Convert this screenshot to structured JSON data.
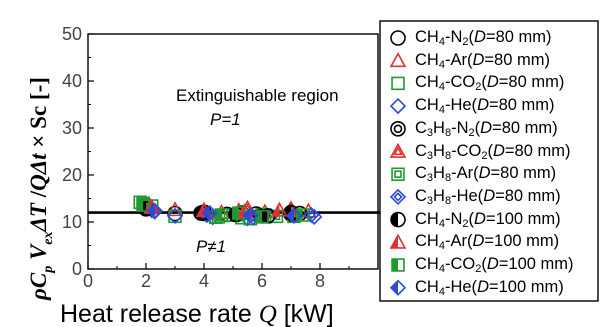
{
  "chart_data": {
    "type": "scatter",
    "xlabel": "Heat release rate Q [kW]",
    "ylabel": "ρC_p V_ex ΔT / QΔt × Sc [-]",
    "xlim": [
      0,
      10
    ],
    "ylim": [
      0,
      50
    ],
    "xticks": [
      "0",
      "2",
      "4",
      "6",
      "8"
    ],
    "yticks": [
      "0",
      "10",
      "20",
      "30",
      "40",
      "50"
    ],
    "reference_line": {
      "y": 12,
      "color": "#000000"
    },
    "annotations": {
      "region": "Extinguishable region",
      "p_equals": "P=1",
      "p_not_equals": "P≠1"
    },
    "series": [
      {
        "name": "CH4-N2(D=80 mm)",
        "legend_html": "CH<sub>4</sub>-N<sub>2</sub>(<i>D</i>=80 mm)",
        "marker": "circle",
        "color": "#000000",
        "points": [
          [
            2.0,
            13.2
          ],
          [
            3.0,
            11.8
          ],
          [
            4.0,
            12.1
          ],
          [
            4.8,
            11.6
          ],
          [
            5.3,
            11.9
          ],
          [
            6.0,
            11.3
          ],
          [
            7.0,
            11.7
          ]
        ]
      },
      {
        "name": "CH4-Ar(D=80 mm)",
        "legend_html": "CH<sub>4</sub>-Ar(<i>D</i>=80 mm)",
        "marker": "triangle",
        "color": "#e03030",
        "points": [
          [
            2.1,
            13.8
          ],
          [
            3.0,
            12.6
          ],
          [
            4.0,
            12.3
          ],
          [
            4.6,
            12.0
          ],
          [
            5.2,
            12.4
          ],
          [
            6.1,
            12.1
          ],
          [
            7.0,
            12.8
          ],
          [
            7.6,
            12.3
          ]
        ]
      },
      {
        "name": "CH4-CO2(D=80 mm)",
        "legend_html": "CH<sub>4</sub>-CO<sub>2</sub>(<i>D</i>=80 mm)",
        "marker": "square",
        "color": "#1f9a30",
        "points": [
          [
            1.8,
            14.2
          ],
          [
            2.2,
            13.4
          ],
          [
            3.0,
            11.2
          ],
          [
            4.5,
            11.1
          ],
          [
            5.0,
            11.4
          ],
          [
            5.6,
            10.7
          ],
          [
            6.0,
            11.6
          ],
          [
            7.1,
            11.2
          ]
        ]
      },
      {
        "name": "CH4-He(D=80 mm)",
        "legend_html": "CH<sub>4</sub>-He(<i>D</i>=80 mm)",
        "marker": "diamond",
        "color": "#2a4bd8",
        "points": [
          [
            2.3,
            12.2
          ],
          [
            3.0,
            11.3
          ],
          [
            4.3,
            11.0
          ],
          [
            5.5,
            10.8
          ],
          [
            6.3,
            11.3
          ],
          [
            7.8,
            11.1
          ]
        ]
      },
      {
        "name": "C3H8-N2(D=80 mm)",
        "legend_html": "C<sub>3</sub>H<sub>8</sub>-N<sub>2</sub>(<i>D</i>=80 mm)",
        "marker": "double-circle",
        "color": "#000000",
        "points": [
          [
            2.0,
            12.9
          ],
          [
            4.0,
            11.8
          ],
          [
            5.8,
            11.7
          ],
          [
            7.3,
            11.8
          ]
        ]
      },
      {
        "name": "C3H8-CO2(D=80 mm)",
        "legend_html": "C<sub>3</sub>H<sub>8</sub>-CO<sub>2</sub>(<i>D</i>=80 mm)",
        "marker": "double-triangle",
        "color": "#e03030",
        "points": [
          [
            2.1,
            13.5
          ],
          [
            4.0,
            12.5
          ],
          [
            5.5,
            12.9
          ],
          [
            7.0,
            12.5
          ]
        ]
      },
      {
        "name": "C3H8-Ar(D=80 mm)",
        "legend_html": "C<sub>3</sub>H<sub>8</sub>-Ar(<i>D</i>=80 mm)",
        "marker": "double-square",
        "color": "#1f9a30",
        "points": [
          [
            1.9,
            13.9
          ],
          [
            4.4,
            11.0
          ],
          [
            5.3,
            10.9
          ],
          [
            6.5,
            11.2
          ]
        ]
      },
      {
        "name": "C3H8-He(D=80 mm)",
        "legend_html": "C<sub>3</sub>H<sub>8</sub>-He(<i>D</i>=80 mm)",
        "marker": "double-diamond",
        "color": "#2a4bd8",
        "points": [
          [
            2.2,
            12.5
          ],
          [
            4.1,
            11.5
          ],
          [
            5.7,
            11.0
          ],
          [
            7.7,
            11.5
          ]
        ]
      },
      {
        "name": "CH4-N2(D=100 mm)",
        "legend_html": "CH<sub>4</sub>-N<sub>2</sub>(<i>D</i>=100 mm)",
        "marker": "half-circle",
        "color": "#000000",
        "points": [
          [
            2.0,
            12.8
          ],
          [
            3.9,
            11.9
          ],
          [
            5.1,
            11.6
          ],
          [
            6.2,
            11.3
          ],
          [
            7.0,
            12.0
          ]
        ]
      },
      {
        "name": "CH4-Ar(D=100 mm)",
        "legend_html": "CH<sub>4</sub>-Ar(<i>D</i>=100 mm)",
        "marker": "half-triangle",
        "color": "#e03030",
        "points": [
          [
            2.2,
            13.1
          ],
          [
            4.0,
            12.4
          ],
          [
            5.4,
            12.2
          ],
          [
            6.6,
            12.5
          ]
        ]
      },
      {
        "name": "CH4-CO2(D=100 mm)",
        "legend_html": "CH<sub>4</sub>-CO<sub>2</sub>(<i>D</i>=100 mm)",
        "marker": "half-square",
        "color": "#1f9a30",
        "points": [
          [
            1.9,
            13.6
          ],
          [
            4.6,
            11.5
          ],
          [
            5.2,
            11.9
          ],
          [
            6.0,
            11.1
          ],
          [
            7.4,
            11.5
          ]
        ]
      },
      {
        "name": "CH4-He(D=100 mm)",
        "legend_html": "CH<sub>4</sub>-He(<i>D</i>=100 mm)",
        "marker": "half-diamond",
        "color": "#2a4bd8",
        "points": [
          [
            2.3,
            12.4
          ],
          [
            4.2,
            11.9
          ],
          [
            5.6,
            11.4
          ],
          [
            7.1,
            11.3
          ]
        ]
      }
    ]
  }
}
